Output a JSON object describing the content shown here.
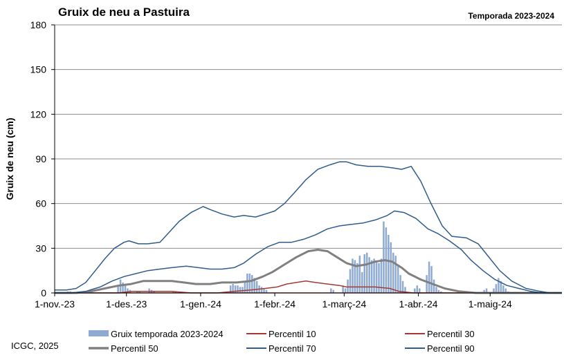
{
  "chart_data": {
    "type": "bar",
    "title": "Gruix de neu a Pastuira",
    "subtitle": "Temporada 2023-2024",
    "ylabel": "Gruix de neu (cm)",
    "xlabel": "",
    "ylim": [
      0,
      180
    ],
    "yticks": [
      0,
      30,
      60,
      90,
      120,
      150,
      180
    ],
    "xlim": [
      "2023-11-01",
      "2024-05-31"
    ],
    "xticks": [
      {
        "date": "2023-11-01",
        "label": "1-nov.-23"
      },
      {
        "date": "2023-12-01",
        "label": "1-des.-23"
      },
      {
        "date": "2024-01-01",
        "label": "1-gen.-24"
      },
      {
        "date": "2024-02-01",
        "label": "1-febr.-24"
      },
      {
        "date": "2024-03-01",
        "label": "1-març-24"
      },
      {
        "date": "2024-04-01",
        "label": "1-abr.-24"
      },
      {
        "date": "2024-05-01",
        "label": "1-maig-24"
      }
    ],
    "grid": "horizontal",
    "legend_position": "bottom",
    "credit": "ICGC, 2025",
    "bars": {
      "name": "Gruix temporada 2023-2024",
      "color": "#8eaad3",
      "points": [
        [
          "2023-11-06",
          1
        ],
        [
          "2023-11-07",
          1
        ],
        [
          "2023-11-27",
          5
        ],
        [
          "2023-11-28",
          9
        ],
        [
          "2023-11-29",
          7
        ],
        [
          "2023-11-30",
          5
        ],
        [
          "2023-12-01",
          3
        ],
        [
          "2023-12-02",
          2
        ],
        [
          "2023-12-05",
          1
        ],
        [
          "2023-12-06",
          1
        ],
        [
          "2023-12-10",
          3
        ],
        [
          "2023-12-11",
          2
        ],
        [
          "2023-12-12",
          1
        ],
        [
          "2023-12-20",
          1
        ],
        [
          "2023-12-21",
          1
        ],
        [
          "2024-01-13",
          5
        ],
        [
          "2024-01-14",
          6
        ],
        [
          "2024-01-15",
          5
        ],
        [
          "2024-01-16",
          5
        ],
        [
          "2024-01-17",
          4
        ],
        [
          "2024-01-18",
          4
        ],
        [
          "2024-01-19",
          8
        ],
        [
          "2024-01-20",
          13
        ],
        [
          "2024-01-21",
          13
        ],
        [
          "2024-01-22",
          12
        ],
        [
          "2024-01-23",
          10
        ],
        [
          "2024-01-24",
          8
        ],
        [
          "2024-01-25",
          5
        ],
        [
          "2024-01-26",
          4
        ],
        [
          "2024-01-27",
          3
        ],
        [
          "2024-01-28",
          2
        ],
        [
          "2024-02-24",
          3
        ],
        [
          "2024-02-25",
          2
        ],
        [
          "2024-02-29",
          5
        ],
        [
          "2024-03-01",
          3
        ],
        [
          "2024-03-02",
          9
        ],
        [
          "2024-03-03",
          16
        ],
        [
          "2024-03-04",
          23
        ],
        [
          "2024-03-05",
          22
        ],
        [
          "2024-03-06",
          20
        ],
        [
          "2024-03-07",
          25
        ],
        [
          "2024-03-08",
          14
        ],
        [
          "2024-03-09",
          26
        ],
        [
          "2024-03-10",
          27
        ],
        [
          "2024-03-11",
          24
        ],
        [
          "2024-03-12",
          22
        ],
        [
          "2024-03-13",
          23
        ],
        [
          "2024-03-14",
          21
        ],
        [
          "2024-03-15",
          20
        ],
        [
          "2024-03-16",
          23
        ],
        [
          "2024-03-17",
          48
        ],
        [
          "2024-03-18",
          44
        ],
        [
          "2024-03-19",
          39
        ],
        [
          "2024-03-20",
          34
        ],
        [
          "2024-03-21",
          27
        ],
        [
          "2024-03-22",
          25
        ],
        [
          "2024-03-23",
          18
        ],
        [
          "2024-03-24",
          12
        ],
        [
          "2024-03-25",
          8
        ],
        [
          "2024-03-26",
          4
        ],
        [
          "2024-03-30",
          3
        ],
        [
          "2024-03-31",
          5
        ],
        [
          "2024-04-01",
          3
        ],
        [
          "2024-04-04",
          12
        ],
        [
          "2024-04-05",
          21
        ],
        [
          "2024-04-06",
          18
        ],
        [
          "2024-04-07",
          9
        ],
        [
          "2024-04-08",
          4
        ],
        [
          "2024-04-09",
          2
        ],
        [
          "2024-04-10",
          1
        ],
        [
          "2024-04-28",
          2
        ],
        [
          "2024-04-29",
          3
        ],
        [
          "2024-05-02",
          3
        ],
        [
          "2024-05-03",
          6
        ],
        [
          "2024-05-04",
          10
        ],
        [
          "2024-05-05",
          8
        ],
        [
          "2024-05-06",
          5
        ],
        [
          "2024-05-07",
          3
        ],
        [
          "2024-05-08",
          1
        ]
      ]
    },
    "series": [
      {
        "name": "Percentil 10",
        "color": "#a03a33",
        "width": 1.5,
        "points": [
          [
            "2023-11-01",
            0
          ],
          [
            "2024-05-31",
            0
          ]
        ]
      },
      {
        "name": "Percentil 30",
        "color": "#a03a33",
        "width": 1.5,
        "points": [
          [
            "2023-11-01",
            0
          ],
          [
            "2023-11-28",
            0
          ],
          [
            "2023-12-03",
            1
          ],
          [
            "2023-12-20",
            1
          ],
          [
            "2023-12-28",
            0
          ],
          [
            "2024-01-08",
            0
          ],
          [
            "2024-01-15",
            1
          ],
          [
            "2024-01-22",
            2
          ],
          [
            "2024-01-28",
            3
          ],
          [
            "2024-02-02",
            4
          ],
          [
            "2024-02-06",
            6
          ],
          [
            "2024-02-10",
            7
          ],
          [
            "2024-02-14",
            8
          ],
          [
            "2024-02-18",
            7
          ],
          [
            "2024-02-23",
            6
          ],
          [
            "2024-02-28",
            5
          ],
          [
            "2024-03-02",
            4
          ],
          [
            "2024-03-08",
            4
          ],
          [
            "2024-03-14",
            4
          ],
          [
            "2024-03-20",
            3
          ],
          [
            "2024-03-24",
            1
          ],
          [
            "2024-03-30",
            0
          ],
          [
            "2024-05-31",
            0
          ]
        ]
      },
      {
        "name": "Percentil 50",
        "color": "#808080",
        "width": 3,
        "points": [
          [
            "2023-11-01",
            0
          ],
          [
            "2023-11-10",
            0
          ],
          [
            "2023-11-16",
            1
          ],
          [
            "2023-11-22",
            3
          ],
          [
            "2023-11-28",
            5
          ],
          [
            "2023-12-03",
            6
          ],
          [
            "2023-12-08",
            8
          ],
          [
            "2023-12-14",
            8
          ],
          [
            "2023-12-20",
            8
          ],
          [
            "2023-12-25",
            7
          ],
          [
            "2023-12-30",
            6
          ],
          [
            "2024-01-05",
            6
          ],
          [
            "2024-01-10",
            7
          ],
          [
            "2024-01-16",
            7
          ],
          [
            "2024-01-22",
            8
          ],
          [
            "2024-01-27",
            11
          ],
          [
            "2024-01-31",
            14
          ],
          [
            "2024-02-05",
            19
          ],
          [
            "2024-02-10",
            24
          ],
          [
            "2024-02-15",
            28
          ],
          [
            "2024-02-19",
            29
          ],
          [
            "2024-02-23",
            28
          ],
          [
            "2024-02-27",
            24
          ],
          [
            "2024-03-02",
            20
          ],
          [
            "2024-03-06",
            18
          ],
          [
            "2024-03-10",
            19
          ],
          [
            "2024-03-14",
            21
          ],
          [
            "2024-03-18",
            22
          ],
          [
            "2024-03-21",
            21
          ],
          [
            "2024-03-25",
            17
          ],
          [
            "2024-03-28",
            13
          ],
          [
            "2024-04-02",
            9
          ],
          [
            "2024-04-07",
            6
          ],
          [
            "2024-04-12",
            3
          ],
          [
            "2024-04-18",
            1
          ],
          [
            "2024-04-25",
            0
          ],
          [
            "2024-05-31",
            0
          ]
        ]
      },
      {
        "name": "Percentil 70",
        "color": "#2e5b8c",
        "width": 1.5,
        "points": [
          [
            "2023-11-01",
            0
          ],
          [
            "2023-11-08",
            0
          ],
          [
            "2023-11-14",
            1
          ],
          [
            "2023-11-20",
            4
          ],
          [
            "2023-11-25",
            8
          ],
          [
            "2023-11-30",
            11
          ],
          [
            "2023-12-05",
            13
          ],
          [
            "2023-12-10",
            15
          ],
          [
            "2023-12-15",
            16
          ],
          [
            "2023-12-20",
            17
          ],
          [
            "2023-12-26",
            18
          ],
          [
            "2023-12-31",
            17
          ],
          [
            "2024-01-05",
            16
          ],
          [
            "2024-01-10",
            16
          ],
          [
            "2024-01-15",
            17
          ],
          [
            "2024-01-19",
            20
          ],
          [
            "2024-01-24",
            26
          ],
          [
            "2024-01-29",
            31
          ],
          [
            "2024-02-03",
            34
          ],
          [
            "2024-02-08",
            34
          ],
          [
            "2024-02-13",
            36
          ],
          [
            "2024-02-18",
            39
          ],
          [
            "2024-02-23",
            43
          ],
          [
            "2024-02-28",
            45
          ],
          [
            "2024-03-04",
            46
          ],
          [
            "2024-03-09",
            47
          ],
          [
            "2024-03-14",
            49
          ],
          [
            "2024-03-19",
            52
          ],
          [
            "2024-03-22",
            55
          ],
          [
            "2024-03-26",
            54
          ],
          [
            "2024-03-31",
            50
          ],
          [
            "2024-04-05",
            43
          ],
          [
            "2024-04-09",
            40
          ],
          [
            "2024-04-14",
            35
          ],
          [
            "2024-04-19",
            29
          ],
          [
            "2024-04-23",
            22
          ],
          [
            "2024-04-28",
            15
          ],
          [
            "2024-05-03",
            9
          ],
          [
            "2024-05-08",
            5
          ],
          [
            "2024-05-13",
            3
          ],
          [
            "2024-05-18",
            1
          ],
          [
            "2024-05-23",
            0
          ],
          [
            "2024-05-31",
            0
          ]
        ]
      },
      {
        "name": "Percentil 90",
        "color": "#2e5b8c",
        "width": 1.5,
        "points": [
          [
            "2023-11-01",
            2
          ],
          [
            "2023-11-06",
            2
          ],
          [
            "2023-11-10",
            3
          ],
          [
            "2023-11-14",
            7
          ],
          [
            "2023-11-18",
            15
          ],
          [
            "2023-11-22",
            23
          ],
          [
            "2023-11-26",
            30
          ],
          [
            "2023-11-30",
            34
          ],
          [
            "2023-12-02",
            35
          ],
          [
            "2023-12-06",
            33
          ],
          [
            "2023-12-10",
            33
          ],
          [
            "2023-12-15",
            34
          ],
          [
            "2023-12-19",
            41
          ],
          [
            "2023-12-23",
            48
          ],
          [
            "2023-12-28",
            54
          ],
          [
            "2024-01-02",
            58
          ],
          [
            "2024-01-05",
            56
          ],
          [
            "2024-01-10",
            53
          ],
          [
            "2024-01-15",
            51
          ],
          [
            "2024-01-19",
            52
          ],
          [
            "2024-01-24",
            51
          ],
          [
            "2024-01-28",
            53
          ],
          [
            "2024-02-01",
            55
          ],
          [
            "2024-02-05",
            60
          ],
          [
            "2024-02-09",
            67
          ],
          [
            "2024-02-14",
            76
          ],
          [
            "2024-02-19",
            83
          ],
          [
            "2024-02-24",
            86
          ],
          [
            "2024-02-28",
            88
          ],
          [
            "2024-03-02",
            88
          ],
          [
            "2024-03-06",
            86
          ],
          [
            "2024-03-11",
            85
          ],
          [
            "2024-03-16",
            85
          ],
          [
            "2024-03-21",
            84
          ],
          [
            "2024-03-25",
            83
          ],
          [
            "2024-03-29",
            85
          ],
          [
            "2024-04-02",
            75
          ],
          [
            "2024-04-06",
            61
          ],
          [
            "2024-04-11",
            45
          ],
          [
            "2024-04-15",
            38
          ],
          [
            "2024-04-21",
            37
          ],
          [
            "2024-04-26",
            33
          ],
          [
            "2024-04-30",
            25
          ],
          [
            "2024-05-05",
            15
          ],
          [
            "2024-05-10",
            8
          ],
          [
            "2024-05-16",
            3
          ],
          [
            "2024-05-22",
            1
          ],
          [
            "2024-05-26",
            0
          ],
          [
            "2024-05-31",
            0
          ]
        ]
      }
    ]
  }
}
